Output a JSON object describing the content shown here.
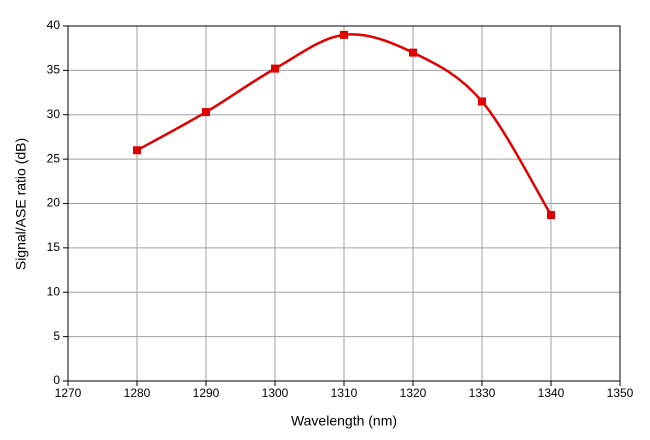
{
  "chart_data": {
    "type": "line",
    "xlabel": "Wavelength (nm)",
    "ylabel": "Signal/ASE ratio (dB)",
    "x": [
      1280,
      1290,
      1300,
      1310,
      1320,
      1330,
      1340
    ],
    "series": [
      {
        "color": "#e00000",
        "values": [
          26.0,
          30.3,
          35.2,
          39.0,
          37.0,
          31.5,
          18.7
        ]
      }
    ],
    "xlim": [
      1270,
      1350
    ],
    "xticks": [
      1270,
      1280,
      1290,
      1300,
      1310,
      1320,
      1330,
      1340,
      1350
    ],
    "ylim": [
      0,
      40
    ],
    "yticks": [
      0,
      5,
      10,
      15,
      20,
      25,
      30,
      35,
      40
    ],
    "grid": true,
    "smooth": true,
    "marker": "square"
  }
}
